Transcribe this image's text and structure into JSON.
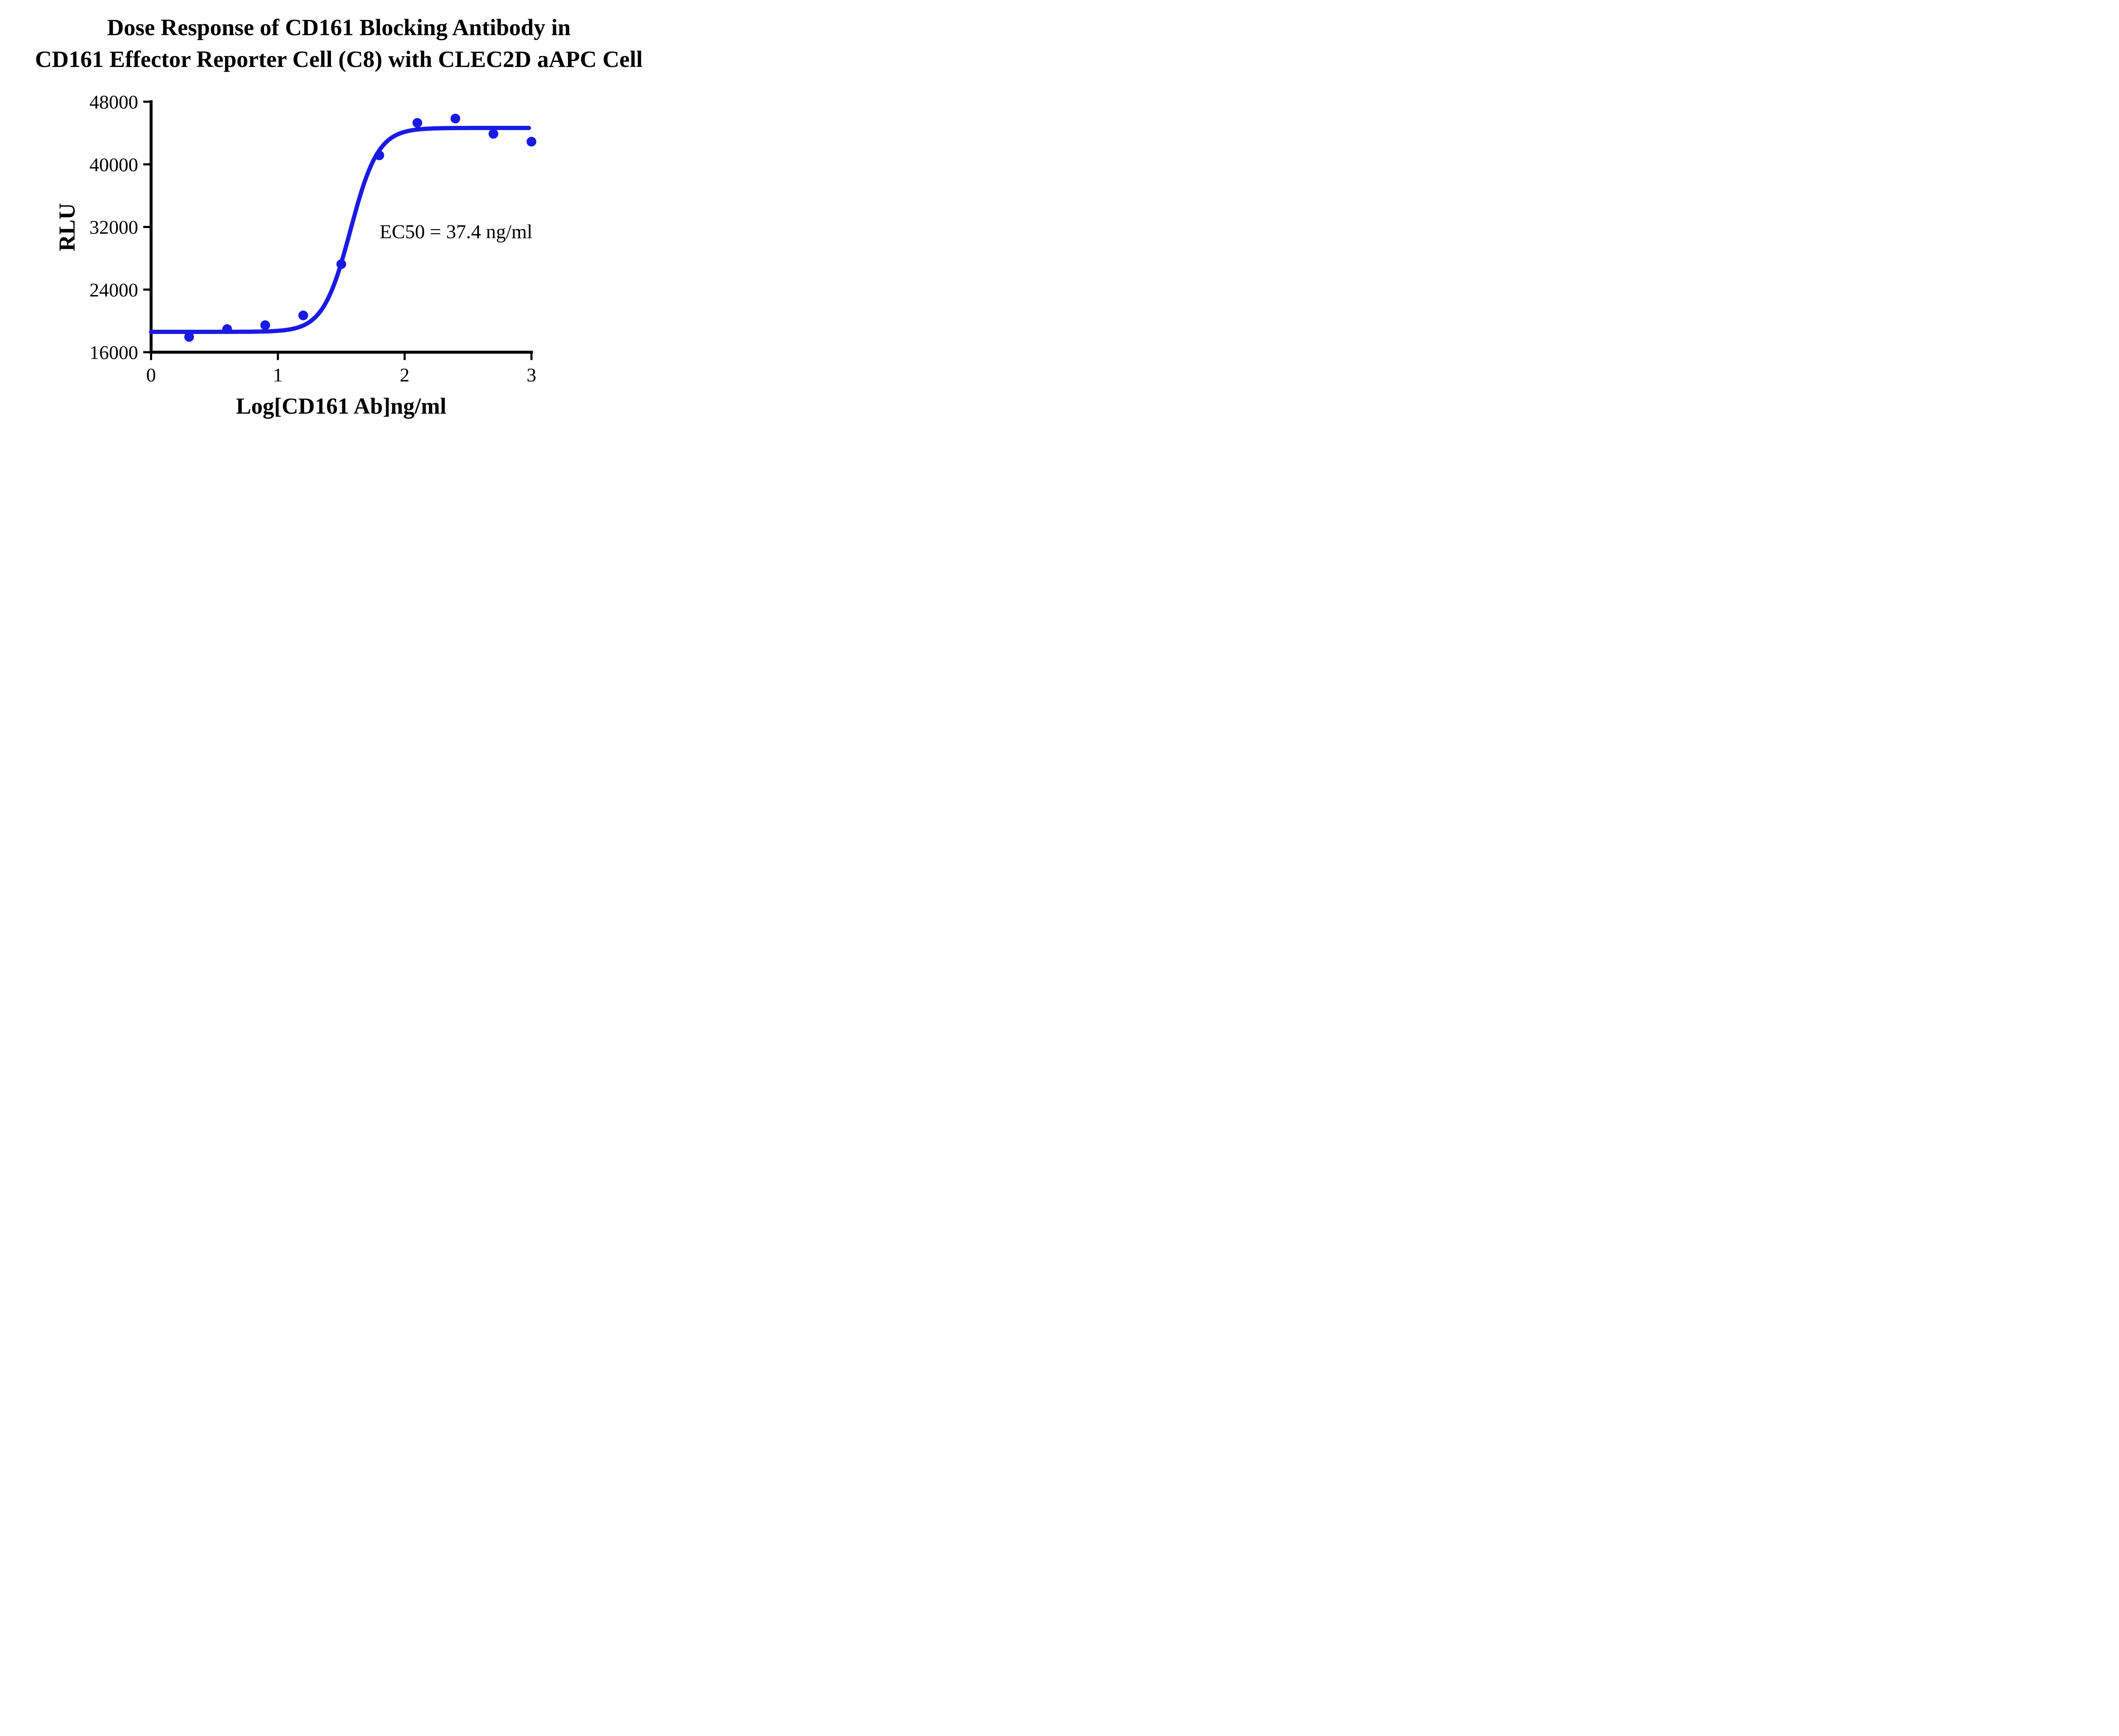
{
  "title": {
    "line1": "Dose Response of CD161 Blocking Antibody in",
    "line2": "CD161 Effector Reporter Cell (C8) with CLEC2D aAPC Cell"
  },
  "chart_data": {
    "type": "scatter",
    "title": "Dose Response of CD161 Blocking Antibody in CD161 Effector Reporter Cell (C8) with CLEC2D aAPC Cell",
    "xlabel": "Log[CD161 Ab]ng/ml",
    "ylabel": "RLU",
    "xlim": [
      0,
      3
    ],
    "ylim": [
      16000,
      48000
    ],
    "x_ticks": [
      0,
      1,
      2,
      3
    ],
    "y_ticks": [
      16000,
      24000,
      32000,
      40000,
      48000
    ],
    "grid": false,
    "legend": null,
    "points": {
      "x": [
        0.3,
        0.6,
        0.9,
        1.2,
        1.5,
        1.8,
        2.1,
        2.4,
        2.7,
        3.0
      ],
      "y": [
        17950,
        18950,
        19450,
        20700,
        27250,
        41150,
        45300,
        45850,
        43900,
        42900
      ]
    },
    "fit_curve": {
      "model": "4PL sigmoid",
      "bottom": 18600,
      "top": 44650,
      "log_ec50": 1.573,
      "hill_slope": 4.0,
      "x_start": 0,
      "x_end": 2.98
    },
    "annotation": {
      "text": "EC50 = 37.4 ng/ml",
      "x": 2.45,
      "y": 31500
    },
    "ec50_ng_ml": 37.4,
    "colors": {
      "series": "#1a1ae6",
      "axis": "#000000",
      "background": "#ffffff"
    }
  }
}
